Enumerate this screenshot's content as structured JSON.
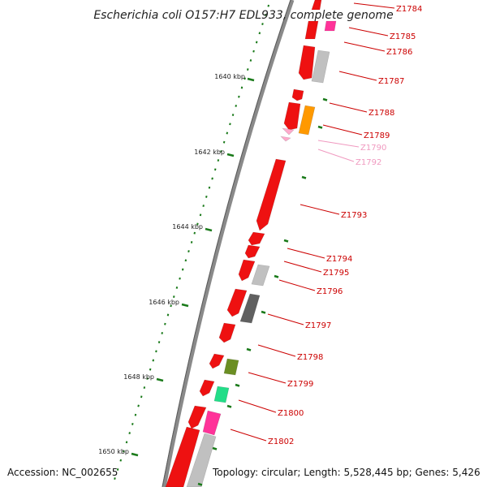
{
  "title": "Escherichia coli O157:H7 EDL933, complete genome",
  "footer": {
    "accession": "Accession: NC_002655",
    "topology": "Topology: circular; Length: 5,528,445 bp; Genes: 5,426"
  },
  "colors": {
    "backbone": "#8a8a8a",
    "tick": "#1a7a1a",
    "label": "#cc0000",
    "faint_label": "#f09ac0",
    "cds_red": "#ee1111",
    "cds_gray": "#c0c0c0",
    "cds_dark_gray": "#606060",
    "cds_pink": "#ff3399",
    "cds_orange": "#ff9900",
    "cds_olive": "#6b8e23",
    "cds_green": "#22dd88",
    "cds_light_pink": "#ffaacc"
  },
  "kbp_marks": [
    "1640 kbp",
    "1642 kbp",
    "1644 kbp",
    "1646 kbp",
    "1648 kbp",
    "1650 kbp"
  ],
  "gene_labels": [
    {
      "id": "Z1784",
      "faint": false
    },
    {
      "id": "Z1785",
      "faint": false
    },
    {
      "id": "Z1786",
      "faint": false
    },
    {
      "id": "Z1787",
      "faint": false
    },
    {
      "id": "Z1788",
      "faint": false
    },
    {
      "id": "Z1789",
      "faint": false
    },
    {
      "id": "Z1790",
      "faint": true
    },
    {
      "id": "Z1792",
      "faint": true
    },
    {
      "id": "Z1793",
      "faint": false
    },
    {
      "id": "Z1794",
      "faint": false
    },
    {
      "id": "Z1795",
      "faint": false
    },
    {
      "id": "Z1796",
      "faint": false
    },
    {
      "id": "Z1797",
      "faint": false
    },
    {
      "id": "Z1798",
      "faint": false
    },
    {
      "id": "Z1799",
      "faint": false
    },
    {
      "id": "Z1800",
      "faint": false
    },
    {
      "id": "Z1802",
      "faint": false
    }
  ]
}
